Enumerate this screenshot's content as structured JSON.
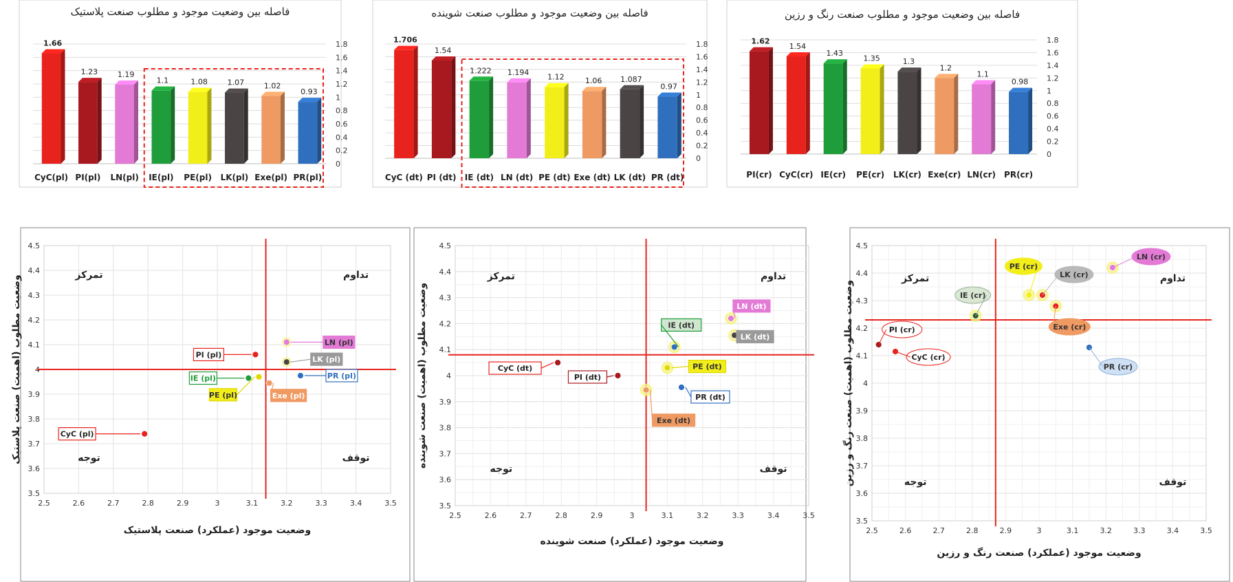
{
  "chart_data": [
    {
      "type": "bar",
      "title": "فاصله بین وضعیت موجود و مطلوب صنعت پلاستیک",
      "categories": [
        "CyC(pl)",
        "PI(pl)",
        "LN(pl)",
        "IE(pl)",
        "PE(pl)",
        "LK(pl)",
        "Exe(pl)",
        "PR(pl)"
      ],
      "values": [
        1.66,
        1.23,
        1.19,
        1.1,
        1.08,
        1.07,
        1.02,
        0.93
      ],
      "value_labels": [
        "1.66",
        "1.23",
        "1.19",
        "1.1",
        "1.08",
        "1.07",
        "1.02",
        "0.93"
      ],
      "colors": [
        "#e8221c",
        "#a8191f",
        "#e37ad6",
        "#1f9d3a",
        "#f2ee1a",
        "#4a4444",
        "#ef9a63",
        "#2f6fbd"
      ],
      "ylim": [
        0,
        1.8
      ],
      "yticks": [
        "0",
        "0.2",
        "0.4",
        "0.6",
        "0.8",
        "1",
        "1.2",
        "1.4",
        "1.6",
        "1.8"
      ],
      "highlight_from_index": 3
    },
    {
      "type": "bar",
      "title": "فاصله بین وضعیت موجود و مطلوب صنعت شوینده",
      "categories": [
        "CyC (dt)",
        "PI (dt)",
        "IE (dt)",
        "LN (dt)",
        "PE (dt)",
        "Exe (dt)",
        "LK (dt)",
        "PR (dt)"
      ],
      "values": [
        1.706,
        1.54,
        1.222,
        1.194,
        1.12,
        1.06,
        1.087,
        0.97
      ],
      "value_labels": [
        "1.706",
        "1.54",
        "1.222",
        "1.194",
        "1.12",
        "1.06",
        "1.087",
        "0.97"
      ],
      "colors": [
        "#e8221c",
        "#a8191f",
        "#1f9d3a",
        "#e37ad6",
        "#f2ee1a",
        "#ef9a63",
        "#4a4444",
        "#2f6fbd"
      ],
      "ylim": [
        0,
        1.8
      ],
      "yticks": [
        "0",
        "0.2",
        "0.4",
        "0.6",
        "0.8",
        "1",
        "1.2",
        "1.4",
        "1.6",
        "1.8"
      ],
      "highlight_from_index": 2
    },
    {
      "type": "bar",
      "title": "فاصله بین وضعیت موجود و مطلوب صنعت رنگ و رزین",
      "categories": [
        "PI(cr)",
        "CyC(cr)",
        "IE(cr)",
        "PE(cr)",
        "LK(cr)",
        "Exe(cr)",
        "LN(cr)",
        "PR(cr)"
      ],
      "values": [
        1.62,
        1.54,
        1.43,
        1.35,
        1.3,
        1.2,
        1.1,
        0.98
      ],
      "value_labels": [
        "1.62",
        "1.54",
        "1.43",
        "1.35",
        "1.3",
        "1.2",
        "1.1",
        "0.98"
      ],
      "colors": [
        "#a8191f",
        "#e8221c",
        "#1f9d3a",
        "#f2ee1a",
        "#4a4444",
        "#ef9a63",
        "#e37ad6",
        "#2f6fbd"
      ],
      "ylim": [
        0,
        1.8
      ],
      "yticks": [
        "0",
        "0.2",
        "0.4",
        "0.6",
        "0.8",
        "1",
        "1.2",
        "1.4",
        "1.6",
        "1.8"
      ],
      "highlight_from_index": null
    },
    {
      "type": "scatter",
      "xlabel": "وضعیت موجود (عملکرد) صنعت پلاستیک",
      "ylabel": "وضعیت مطلوب (اهمیت) صنعت پلاستیک",
      "xlim": [
        2.5,
        3.5
      ],
      "ylim": [
        3.5,
        4.5
      ],
      "xticks": [
        "2.5",
        "2.6",
        "2.7",
        "2.8",
        "2.9",
        "3",
        "3.1",
        "3.2",
        "3.3",
        "3.4",
        "3.5"
      ],
      "yticks": [
        "3.5",
        "3.6",
        "3.7",
        "3.8",
        "3.9",
        "4",
        "4.1",
        "4.2",
        "4.3",
        "4.4",
        "4.5"
      ],
      "divider_x": 3.14,
      "divider_y": 4.0,
      "quadrants": {
        "top_left": "تمرکز",
        "top_right": "تداوم",
        "bottom_left": "توجه",
        "bottom_right": "توقف"
      },
      "points": [
        {
          "label": "CyC (pl)",
          "x": 2.79,
          "y": 3.74,
          "color": "#e8221c"
        },
        {
          "label": "PI (pl)",
          "x": 3.11,
          "y": 4.06,
          "color": "#e8221c"
        },
        {
          "label": "IE (pl)",
          "x": 3.09,
          "y": 3.965,
          "color": "#1f9d3a"
        },
        {
          "label": "PE (pl)",
          "x": 3.12,
          "y": 3.97,
          "color": "#e0d800"
        },
        {
          "label": "Exe (pl)",
          "x": 3.15,
          "y": 3.945,
          "color": "#ef9a63"
        },
        {
          "label": "LN (pl)",
          "x": 3.2,
          "y": 4.11,
          "color": "#e37ad6"
        },
        {
          "label": "LK (pl)",
          "x": 3.2,
          "y": 4.03,
          "color": "#4a4444"
        },
        {
          "label": "PR (pl)",
          "x": 3.24,
          "y": 3.975,
          "color": "#2f6fbd"
        }
      ]
    },
    {
      "type": "scatter",
      "xlabel": "وضعیت موجود (عملکرد) صنعت شوینده",
      "ylabel": "وضعیت مطلوب (اهمیت) صنعت شوینده",
      "xlim": [
        2.5,
        3.5
      ],
      "ylim": [
        3.5,
        4.5
      ],
      "xticks": [
        "2.5",
        "2.6",
        "2.7",
        "2.8",
        "2.9",
        "3",
        "3.1",
        "3.2",
        "3.3",
        "3.4",
        "3.5"
      ],
      "yticks": [
        "3.5",
        "3.6",
        "3.7",
        "3.8",
        "3.9",
        "4",
        "4.1",
        "4.2",
        "4.3",
        "4.4",
        "4.5"
      ],
      "divider_x": 3.04,
      "divider_y": 4.08,
      "quadrants": {
        "top_left": "تمرکز",
        "top_right": "تداوم",
        "bottom_left": "توجه",
        "bottom_right": "توقف"
      },
      "points": [
        {
          "label": "CyC (dt)",
          "x": 2.79,
          "y": 4.05,
          "color": "#a8191f"
        },
        {
          "label": "PI (dt)",
          "x": 2.96,
          "y": 4.0,
          "color": "#a8191f"
        },
        {
          "label": "IE (dt)",
          "x": 3.12,
          "y": 4.11,
          "color": "#2f6fbd"
        },
        {
          "label": "LN (dt)",
          "x": 3.28,
          "y": 4.22,
          "color": "#e37ad6"
        },
        {
          "label": "LK (dt)",
          "x": 3.29,
          "y": 4.155,
          "color": "#4a4444"
        },
        {
          "label": "PE (dt)",
          "x": 3.1,
          "y": 4.03,
          "color": "#e0d800"
        },
        {
          "label": "PR (dt)",
          "x": 3.14,
          "y": 3.955,
          "color": "#2f6fbd"
        },
        {
          "label": "Exe (dt)",
          "x": 3.04,
          "y": 3.945,
          "color": "#ef9a63"
        }
      ]
    },
    {
      "type": "scatter",
      "xlabel": "وضعیت موجود (عملکرد) صنعت رنگ و رزین",
      "ylabel": "وضعیت مطلوب (اهمیت) صنعت رنگ و رزین",
      "xlim": [
        2.5,
        3.5
      ],
      "ylim": [
        3.5,
        4.5
      ],
      "xticks": [
        "2.5",
        "2.6",
        "2.7",
        "2.8",
        "2.9",
        "3",
        "3.1",
        "3.2",
        "3.3",
        "3.4",
        "3.5"
      ],
      "yticks": [
        "3.5",
        "3.6",
        "3.7",
        "3.8",
        "3.9",
        "4",
        "4.1",
        "4.2",
        "4.3",
        "4.4",
        "4.5"
      ],
      "divider_x": 2.87,
      "divider_y": 4.23,
      "quadrants": {
        "top_left": "تمرکز",
        "top_right": "تداوم",
        "bottom_left": "توجه",
        "bottom_right": "توقف"
      },
      "points": [
        {
          "label": "PI (cr)",
          "x": 2.52,
          "y": 4.14,
          "color": "#a8191f"
        },
        {
          "label": "CyC (cr)",
          "x": 2.57,
          "y": 4.115,
          "color": "#e8221c"
        },
        {
          "label": "IE (cr)",
          "x": 2.81,
          "y": 4.245,
          "color": "#2e5e2e"
        },
        {
          "label": "PE (cr)",
          "x": 2.97,
          "y": 4.32,
          "color": "#f2ee1a"
        },
        {
          "label": "LK (cr)",
          "x": 3.01,
          "y": 4.32,
          "color": "#e8221c"
        },
        {
          "label": "Exe (cr)",
          "x": 3.05,
          "y": 4.28,
          "color": "#e8221c"
        },
        {
          "label": "LN (cr)",
          "x": 3.22,
          "y": 4.42,
          "color": "#e37ad6"
        },
        {
          "label": "PR (cr)",
          "x": 3.15,
          "y": 4.13,
          "color": "#2f6fbd"
        }
      ]
    }
  ]
}
